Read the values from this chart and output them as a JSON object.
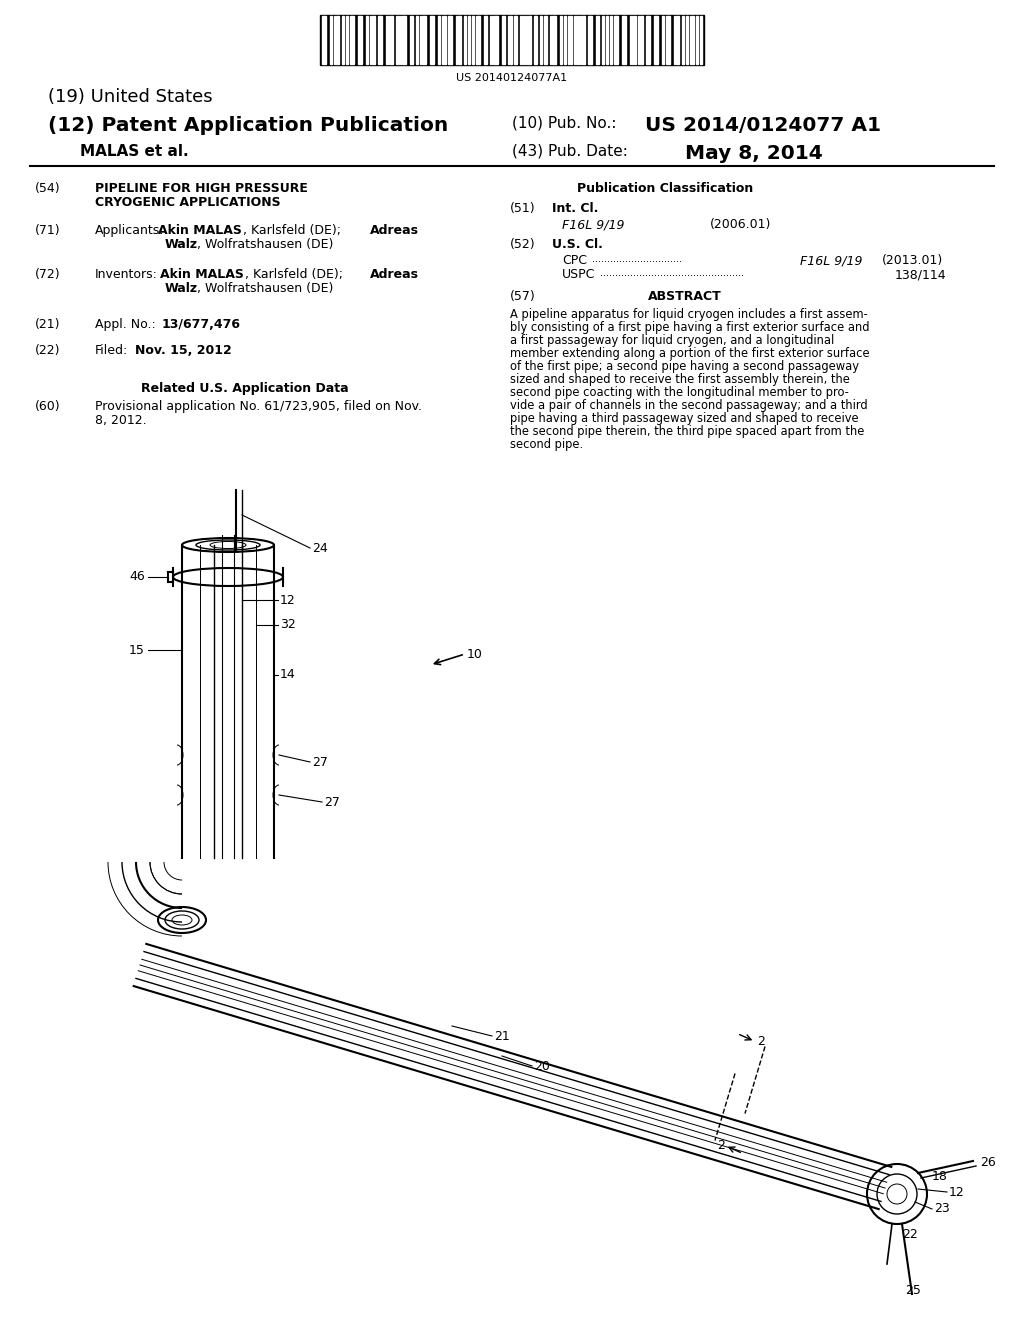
{
  "bg_color": "#ffffff",
  "barcode_text": "US 20140124077A1",
  "header_line1_left": "(19) United States",
  "header_line2_left": "(12) Patent Application Publication",
  "header_line2_right_value": "US 2014/0124077 A1",
  "header_line3_left": "MALAS et al.",
  "header_line3_right_value": "May 8, 2014",
  "section54_title_line1": "PIPELINE FOR HIGH PRESSURE",
  "section54_title_line2": "CRYOGENIC APPLICATIONS",
  "section22_text_value": "Nov. 15, 2012",
  "related_header": "Related U.S. Application Data",
  "pub_class_header": "Publication Classification",
  "abstract_text_lines": [
    "A pipeline apparatus for liquid cryogen includes a first assem-",
    "bly consisting of a first pipe having a first exterior surface and",
    "a first passageway for liquid cryogen, and a longitudinal",
    "member extending along a portion of the first exterior surface",
    "of the first pipe; a second pipe having a second passageway",
    "sized and shaped to receive the first assembly therein, the",
    "second pipe coacting with the longitudinal member to pro-",
    "vide a pair of channels in the second passageway; and a third",
    "pipe having a third passageway sized and shaped to receive",
    "the second pipe therein, the third pipe spaced apart from the",
    "second pipe."
  ]
}
